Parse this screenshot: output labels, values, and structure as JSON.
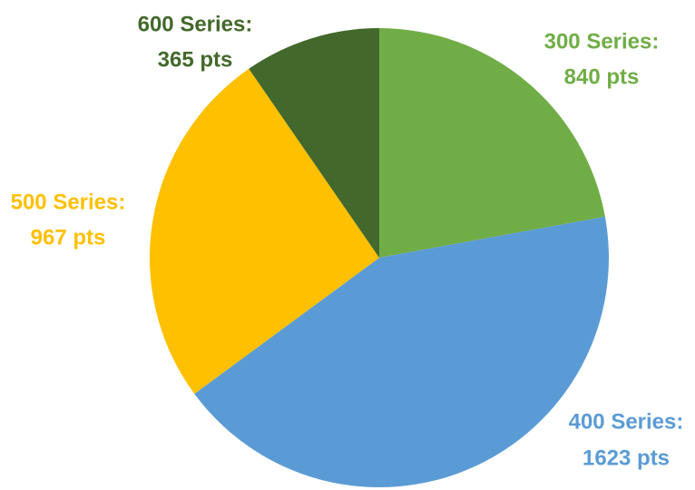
{
  "chart_data": {
    "type": "pie",
    "title": "",
    "start_angle_deg": 0,
    "direction": "clockwise",
    "series": [
      {
        "name": "300 Series",
        "value": 840,
        "label_line1": "300 Series:",
        "label_line2": "840 pts",
        "color": "#70AD47"
      },
      {
        "name": "400 Series",
        "value": 1623,
        "label_line1": "400 Series:",
        "label_line2": "1623 pts",
        "color": "#5B9BD5"
      },
      {
        "name": "500 Series",
        "value": 967,
        "label_line1": "500 Series:",
        "label_line2": "967 pts",
        "color": "#FFC000"
      },
      {
        "name": "600 Series",
        "value": 365,
        "label_line1": "600 Series:",
        "label_line2": "365 pts",
        "color": "#43682B"
      }
    ]
  }
}
